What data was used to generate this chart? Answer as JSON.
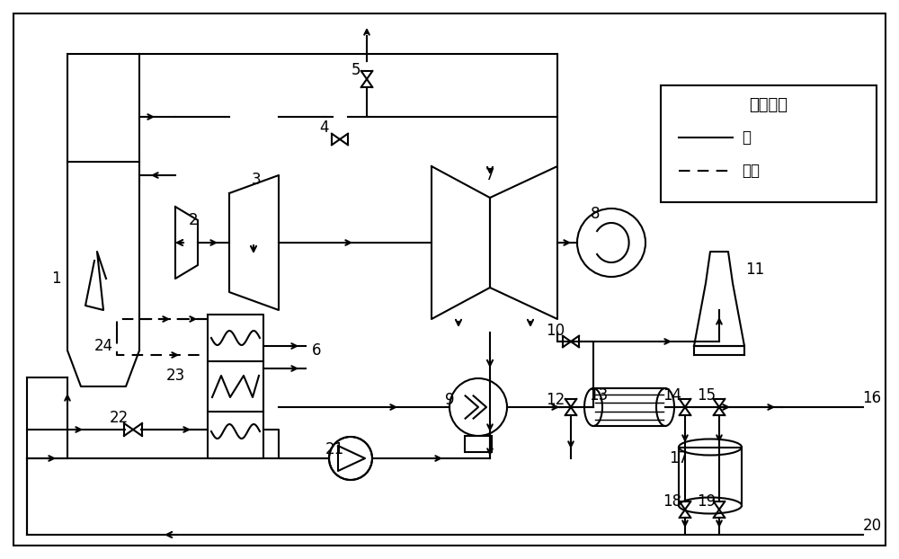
{
  "bg": "#ffffff",
  "lc": "#000000",
  "lw": 1.5,
  "legend_title": "图例说明",
  "legend_water": "水",
  "legend_smoke": "烟气"
}
